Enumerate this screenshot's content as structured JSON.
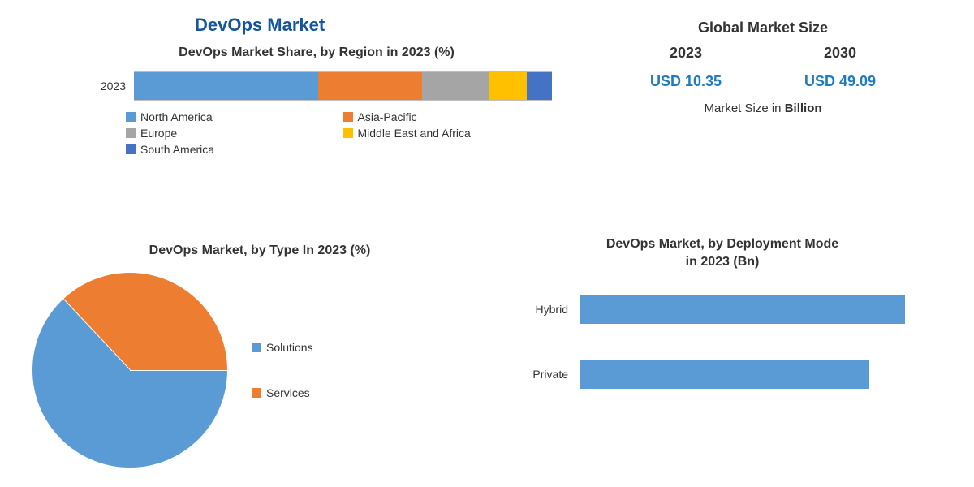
{
  "title": {
    "text": "DevOps Market",
    "color": "#1455a0",
    "fontsize": 22
  },
  "region_share": {
    "type": "stacked-bar-horizontal",
    "title": "DevOps Market Share, by Region in 2023 (%)",
    "title_fontsize": 16,
    "y_label": "2023",
    "border_color": "#bfbfbf",
    "series": [
      {
        "name": "North America",
        "value": 44,
        "color": "#5b9bd5"
      },
      {
        "name": "Asia-Pacific",
        "value": 25,
        "color": "#ed7d31"
      },
      {
        "name": "Europe",
        "value": 16,
        "color": "#a5a5a5"
      },
      {
        "name": "Middle East and Africa",
        "value": 9,
        "color": "#ffc000"
      },
      {
        "name": "South America",
        "value": 6,
        "color": "#4472c4"
      }
    ]
  },
  "market_size": {
    "title": "Global Market Size",
    "years": [
      "2023",
      "2030"
    ],
    "values": [
      "USD 10.35",
      "USD 49.09"
    ],
    "value_color": "#1f7bbf",
    "unit_prefix": "Market Size in ",
    "unit_bold": "Billion",
    "title_fontsize": 18,
    "value_fontsize": 18
  },
  "by_type": {
    "type": "pie",
    "title": "DevOps Market, by Type In 2023 (%)",
    "title_fontsize": 16,
    "slices": [
      {
        "name": "Solutions",
        "value": 63,
        "color": "#5b9bd5"
      },
      {
        "name": "Services",
        "value": 37,
        "color": "#ed7d31"
      }
    ],
    "separator_color": "#ffffff",
    "start_angle_deg": 90
  },
  "by_deployment": {
    "type": "bar-horizontal",
    "title_line1": "DevOps Market, by Deployment Mode",
    "title_line2": "in 2023 (Bn)",
    "title_fontsize": 16,
    "bar_color": "#5b9bd5",
    "xlim": [
      0,
      5
    ],
    "bars": [
      {
        "name": "Hybrid",
        "value": 4.5
      },
      {
        "name": "Private",
        "value": 4.0
      }
    ]
  }
}
